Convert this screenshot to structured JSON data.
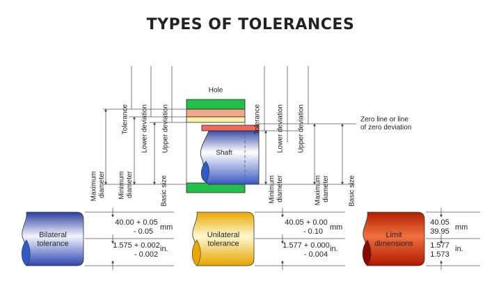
{
  "title": "TYPES OF TOLERANCES",
  "diagram": {
    "hole_label": "Hole",
    "shaft_label": "Shaft",
    "left_top_labels": [
      "Tolerance",
      "Lower deviation",
      "Upper deviation"
    ],
    "left_dims": [
      "Maximum diameter",
      "Minimum diameter",
      "Basic size"
    ],
    "right_top_labels": [
      "Tolerance",
      "Lower deviation",
      "Upper deviation"
    ],
    "zero_line": "Zero line or line of zero deviation",
    "right_dims": [
      "Minimum diameter",
      "Maximum diameter",
      "Basic size"
    ]
  },
  "examples": [
    {
      "name": "Bilateral tolerance",
      "metric": [
        "40.00 + 0.05",
        "- 0.05"
      ],
      "metric_unit": "mm",
      "imperial": [
        "1.575 + 0.002",
        "- 0.002"
      ],
      "imperial_unit": "in."
    },
    {
      "name": "Unilateral tolerance",
      "metric": [
        "40.05 + 0.00",
        "- 0.10"
      ],
      "metric_unit": "mm",
      "imperial": [
        "1.577 + 0.000",
        "- 0.004"
      ],
      "imperial_unit": "in."
    },
    {
      "name": "Limit dimensions",
      "metric": [
        "40.05",
        "39.95"
      ],
      "metric_unit": "mm",
      "imperial": [
        "1.577",
        "1.573"
      ],
      "imperial_unit": "in."
    }
  ]
}
